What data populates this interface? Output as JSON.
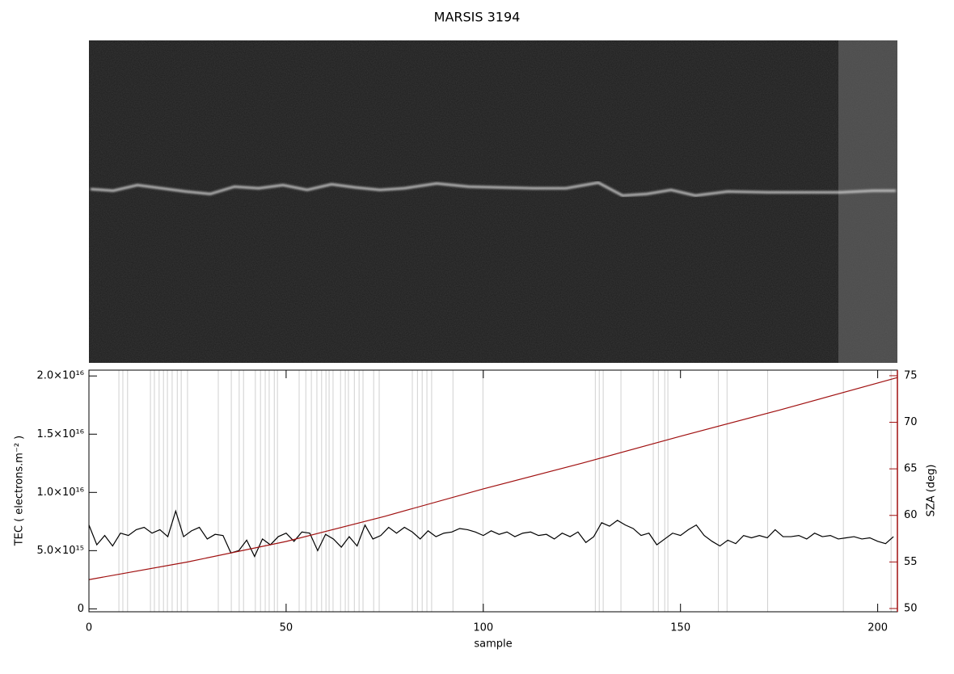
{
  "chart_data": {
    "type": "line",
    "title": "MARSIS 3194",
    "xlabel": "sample",
    "ylabel": "TEC ( electrons.m⁻² )",
    "y2label": "SZA (deg)",
    "xlim": [
      0,
      205
    ],
    "xticks": [
      0,
      50,
      100,
      150,
      200
    ],
    "ylim": [
      -250000000000000.0,
      2.05e+16
    ],
    "yticks": [
      0,
      {
        "value": 5000000000000000.0,
        "label": "5.0×10¹⁵"
      },
      {
        "value": 1e+16,
        "label": "1.0×10¹⁶"
      },
      {
        "value": 1.5e+16,
        "label": "1.5×10¹⁶"
      },
      {
        "value": 2e+16,
        "label": "2.0×10¹⁶"
      }
    ],
    "y2lim": [
      49.65,
      75.6
    ],
    "y2ticks": [
      50,
      55,
      60,
      65,
      70,
      75
    ],
    "y2color": "#a01010",
    "vlines": [
      7.6,
      8.6,
      9.8,
      15.6,
      16.6,
      17.8,
      18.9,
      19.9,
      21.1,
      22.4,
      23.4,
      25,
      32.8,
      36.1,
      38.1,
      39.2,
      42.2,
      43.5,
      44.7,
      45.7,
      47,
      47.8,
      53.3,
      55,
      56.4,
      57.8,
      59,
      60.1,
      60.9,
      61.9,
      63.8,
      65,
      65.8,
      67.3,
      68.5,
      69.5,
      72.2,
      73.6,
      82,
      83.3,
      84.5,
      85.7,
      86.9,
      92.3,
      99.9,
      128.4,
      129.4,
      130.4,
      134.9,
      143.1,
      144.4,
      146,
      146.8,
      159.6,
      161.8,
      172.1,
      191.3,
      203.4
    ],
    "vline_color": "#d0d0d0",
    "series": [
      {
        "color": "#000000",
        "x": [
          0,
          2,
          4,
          6,
          8,
          10,
          12,
          14,
          16,
          18,
          20,
          22,
          24,
          26,
          28,
          30,
          32,
          34,
          36,
          38,
          40,
          42,
          44,
          46,
          48,
          50,
          52,
          54,
          56,
          58,
          60,
          62,
          64,
          66,
          68,
          70,
          72,
          74,
          76,
          78,
          80,
          82,
          84,
          86,
          88,
          90,
          92,
          94,
          96,
          98,
          100,
          102,
          104,
          106,
          108,
          110,
          112,
          114,
          116,
          118,
          120,
          122,
          124,
          126,
          128,
          130,
          132,
          134,
          136,
          138,
          140,
          142,
          144,
          146,
          148,
          150,
          152,
          154,
          156,
          158,
          160,
          162,
          164,
          166,
          168,
          170,
          172,
          174,
          176,
          178,
          180,
          182,
          184,
          186,
          188,
          190,
          192,
          194,
          196,
          198,
          200,
          202,
          204
        ],
        "values": [
          7200000000000000.0,
          5500000000000000.0,
          6300000000000000.0,
          5400000000000000.0,
          6500000000000000.0,
          6300000000000000.0,
          6800000000000000.0,
          7000000000000000.0,
          6500000000000000.0,
          6800000000000000.0,
          6200000000000000.0,
          8400000000000000.0,
          6200000000000000.0,
          6700000000000000.0,
          7000000000000000.0,
          6000000000000000.0,
          6400000000000000.0,
          6300000000000000.0,
          4800000000000000.0,
          5000000000000000.0,
          5900000000000000.0,
          4500000000000000.0,
          6000000000000000.0,
          5500000000000000.0,
          6200000000000000.0,
          6500000000000000.0,
          5800000000000000.0,
          6600000000000000.0,
          6500000000000000.0,
          5000000000000000.0,
          6400000000000000.0,
          6000000000000000.0,
          5300000000000000.0,
          6200000000000000.0,
          5400000000000000.0,
          7200000000000000.0,
          6000000000000000.0,
          6300000000000000.0,
          7000000000000000.0,
          6500000000000000.0,
          7000000000000000.0,
          6600000000000000.0,
          6000000000000000.0,
          6700000000000000.0,
          6200000000000000.0,
          6500000000000000.0,
          6600000000000000.0,
          6900000000000000.0,
          6800000000000000.0,
          6600000000000000.0,
          6300000000000000.0,
          6700000000000000.0,
          6400000000000000.0,
          6600000000000000.0,
          6200000000000000.0,
          6500000000000000.0,
          6600000000000000.0,
          6300000000000000.0,
          6400000000000000.0,
          6000000000000000.0,
          6500000000000000.0,
          6200000000000000.0,
          6600000000000000.0,
          5700000000000000.0,
          6200000000000000.0,
          7400000000000000.0,
          7100000000000000.0,
          7600000000000000.0,
          7200000000000000.0,
          6900000000000000.0,
          6300000000000000.0,
          6500000000000000.0,
          5500000000000000.0,
          6000000000000000.0,
          6500000000000000.0,
          6300000000000000.0,
          6800000000000000.0,
          7200000000000000.0,
          6300000000000000.0,
          5800000000000000.0,
          5400000000000000.0,
          5900000000000000.0,
          5600000000000000.0,
          6300000000000000.0,
          6100000000000000.0,
          6300000000000000.0,
          6100000000000000.0,
          6800000000000000.0,
          6200000000000000.0,
          6200000000000000.0,
          6300000000000000.0,
          6000000000000000.0,
          6500000000000000.0,
          6200000000000000.0,
          6300000000000000.0,
          6000000000000000.0,
          6100000000000000.0,
          6200000000000000.0,
          6000000000000000.0,
          6100000000000000.0,
          5800000000000000.0,
          5600000000000000.0,
          6200000000000000.0
        ]
      },
      {
        "color": "#a01010",
        "axis": "y2",
        "x": [
          0,
          25,
          50,
          75,
          100,
          125,
          150,
          175,
          205
        ],
        "values": [
          53.1,
          55.0,
          57.2,
          59.9,
          62.85,
          65.6,
          68.5,
          71.3,
          74.8
        ]
      }
    ]
  }
}
